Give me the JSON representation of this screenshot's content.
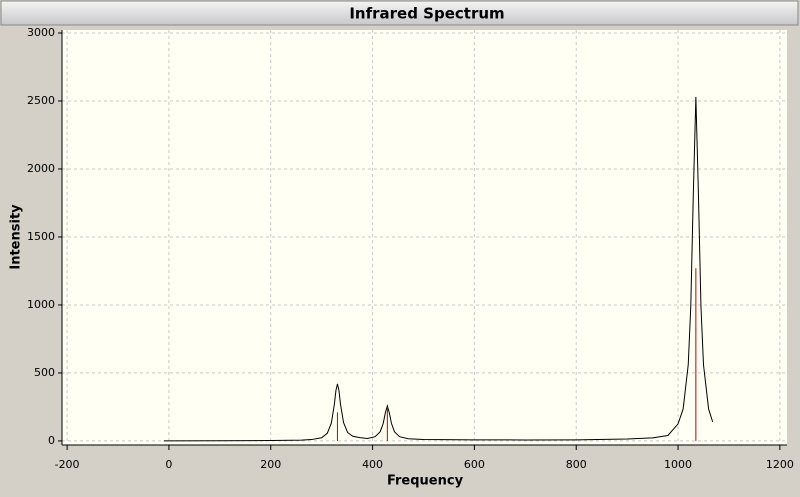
{
  "chart_data": {
    "type": "line",
    "title": "Infrared Spectrum",
    "x_label": "Frequency",
    "y_label": "Intensity",
    "x": [
      -10,
      100,
      200,
      260,
      280,
      300,
      311,
      319,
      325,
      328,
      331,
      334,
      337,
      343,
      351,
      361,
      375,
      390,
      405,
      415,
      421,
      425,
      429,
      433,
      437,
      443,
      453,
      470,
      500,
      600,
      700,
      800,
      900,
      950,
      980,
      1000,
      1010,
      1020,
      1025,
      1030,
      1035,
      1040,
      1045,
      1050,
      1060,
      1068
    ],
    "series": [
      {
        "color": "#000000",
        "values": [
          0,
          1,
          3,
          6,
          10,
          23,
          56,
          130,
          270,
          370,
          420,
          370,
          270,
          135,
          62,
          34,
          24,
          18,
          31,
          68,
          130,
          205,
          258,
          205,
          130,
          68,
          31,
          16,
          10,
          8,
          7,
          8,
          14,
          22,
          40,
          125,
          235,
          560,
          987,
          1819,
          2530,
          1819,
          987,
          560,
          235,
          140
        ]
      }
    ],
    "sticks": {
      "color": "#c00000",
      "x": [
        331,
        429,
        1035
      ],
      "values": [
        210,
        250,
        1270
      ]
    },
    "xlim": [
      -210,
      1214
    ],
    "ylim": [
      -30,
      3022
    ],
    "xticks": [
      -200,
      0,
      200,
      400,
      600,
      800,
      1000,
      1200
    ],
    "yticks": [
      0,
      500,
      1000,
      1500,
      2000,
      2500,
      3000
    ],
    "grid": true
  }
}
